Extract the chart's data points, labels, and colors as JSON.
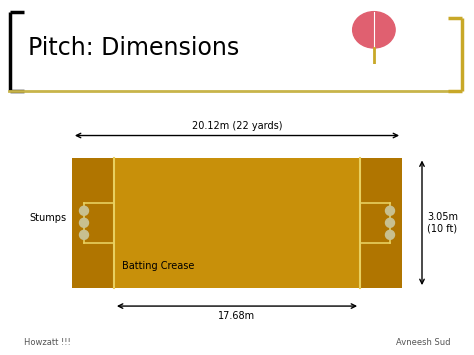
{
  "title": "Pitch: Dimensions",
  "bg_white": "#ffffff",
  "bg_green": "#4db526",
  "pitch_color": "#c8900a",
  "crease_end_color": "#b07500",
  "crease_line_color": "#e8d060",
  "title_color": "#000000",
  "footer_left": "Howzatt !!!",
  "footer_right": "Avneesh Sud",
  "dim_top": "20.12m (22 yards)",
  "dim_bottom": "17.68m",
  "dim_right": "3.05m\n(10 ft)",
  "label_stumps": "Stumps",
  "label_batting": "Batting Crease",
  "gold_line_color": "#c8b44a",
  "bracket_left_color": "#000000",
  "bracket_right_color": "#c8a828",
  "ball_bg": "#dce8f0",
  "ball_color": "#e06070",
  "stump_circle_color": "#c8c090",
  "footer_color": "#555555"
}
